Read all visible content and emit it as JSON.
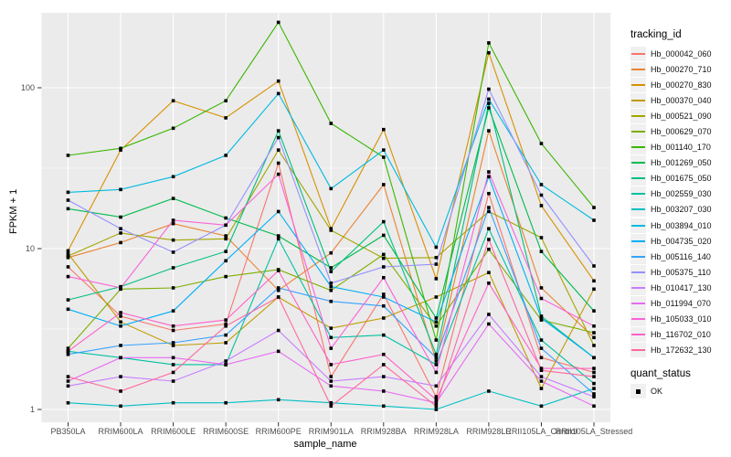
{
  "figure": {
    "y_axis_title": "FPKM + 1",
    "x_axis_title": "sample_name",
    "legend": {
      "title": "tracking_id",
      "quant_title": "quant_status",
      "quant_item": "OK"
    },
    "colors": {
      "background": "#FFFFFF",
      "panel_bg": "#EBEBEB",
      "gridline": "#FFFFFF",
      "axis_text": "#4D4D4D",
      "tick_mark": "#333333",
      "legend_key_bg": "#F0F0F0",
      "point_marker": "#000000"
    }
  },
  "chart_data": {
    "type": "line",
    "title": "",
    "xlabel": "sample_name",
    "ylabel": "FPKM + 1",
    "y_scale": "log10",
    "ylim": [
      0.85,
      290
    ],
    "y_ticks": [
      1,
      10,
      100
    ],
    "y_minor_gridlines": [
      3.1623,
      31.623
    ],
    "grid": true,
    "legend_position": "right",
    "legend_title": "tracking_id",
    "point_marker": "filled black square = quant_status OK",
    "categories": [
      "PB350LA",
      "RRIM600LA",
      "RRIM600LE",
      "RRIM600SE",
      "RRIM600PE",
      "RRIM901LA",
      "RRIM928BA",
      "RRIM928LA",
      "RRIM928LE",
      "RRII105LA_Control",
      "RRII105LA_Stressed"
    ],
    "series": [
      {
        "name": "Hb_000042_060",
        "color": "#F8766D",
        "values": [
          7.7,
          3.8,
          3.1,
          3.4,
          34,
          1.6,
          5.2,
          1.2,
          22,
          2.1,
          1.7
        ]
      },
      {
        "name": "Hb_000270_710",
        "color": "#EA8331",
        "values": [
          8.8,
          10.9,
          14.3,
          12,
          5.5,
          9.4,
          25,
          2.0,
          54,
          5.7,
          2.8
        ]
      },
      {
        "name": "Hb_000270_830",
        "color": "#D89000",
        "values": [
          9.7,
          41,
          83,
          65,
          110,
          13.3,
          55,
          6.5,
          165,
          18.5,
          6.3
        ]
      },
      {
        "name": "Hb_000370_040",
        "color": "#C09B00",
        "values": [
          9.3,
          3.5,
          2.5,
          2.6,
          5.0,
          3.2,
          3.7,
          5.0,
          7.1,
          1.35,
          5.6
        ]
      },
      {
        "name": "Hb_000521_090",
        "color": "#A3A500",
        "values": [
          9.0,
          12.5,
          11.3,
          11.5,
          41,
          13,
          8.7,
          8.8,
          17,
          11.7,
          2.5
        ]
      },
      {
        "name": "Hb_000629_070",
        "color": "#7CAE00",
        "values": [
          2.4,
          5.6,
          5.7,
          6.7,
          7.4,
          5.5,
          9.2,
          3.3,
          9.9,
          3.6,
          3.0
        ]
      },
      {
        "name": "Hb_001140_170",
        "color": "#39B600",
        "values": [
          38,
          42,
          56,
          83,
          255,
          60,
          37,
          2.7,
          190,
          45,
          18
        ]
      },
      {
        "name": "Hb_001269_050",
        "color": "#00BB4E",
        "values": [
          17.7,
          15.7,
          20.5,
          15.5,
          12,
          7.6,
          12.1,
          3.7,
          75,
          9.6,
          4.1
        ]
      },
      {
        "name": "Hb_001675_050",
        "color": "#00BF7D",
        "values": [
          4.8,
          5.8,
          7.6,
          9.6,
          54,
          7.2,
          14.7,
          2.2,
          80,
          3.8,
          2.1
        ]
      },
      {
        "name": "Hb_002559_030",
        "color": "#00C1A3",
        "values": [
          2.3,
          2.1,
          1.9,
          1.9,
          11.5,
          2.8,
          2.9,
          1.9,
          13.3,
          2.7,
          1.45
        ]
      },
      {
        "name": "Hb_003207_030",
        "color": "#00BFC4",
        "values": [
          1.1,
          1.05,
          1.1,
          1.1,
          1.15,
          1.1,
          1.05,
          1.0,
          1.3,
          1.05,
          1.35
        ]
      },
      {
        "name": "Hb_003894_010",
        "color": "#00BAE0",
        "values": [
          22.4,
          23.3,
          28,
          38,
          92,
          23.6,
          41,
          10.2,
          85,
          25,
          15
        ]
      },
      {
        "name": "Hb_004735_020",
        "color": "#00B0F6",
        "values": [
          4.2,
          3.3,
          4.1,
          8.4,
          17,
          5.8,
          5.0,
          3.5,
          28,
          3.7,
          2.1
        ]
      },
      {
        "name": "Hb_005116_140",
        "color": "#35A2FF",
        "values": [
          2.2,
          2.5,
          2.6,
          2.9,
          5.7,
          4.7,
          4.4,
          2.1,
          18,
          2.4,
          1.25
        ]
      },
      {
        "name": "Hb_005375_110",
        "color": "#9590FF",
        "values": [
          20,
          13.3,
          9.5,
          14,
          49,
          6.1,
          7.7,
          8.0,
          98,
          21.5,
          7.8
        ]
      },
      {
        "name": "Hb_010417_130",
        "color": "#C77CFF",
        "values": [
          1.4,
          1.6,
          1.5,
          2.0,
          3.1,
          1.5,
          1.6,
          1.4,
          3.9,
          1.6,
          1.2
        ]
      },
      {
        "name": "Hb_011994_070",
        "color": "#E76BF3",
        "values": [
          1.5,
          2.1,
          2.1,
          1.9,
          2.3,
          1.4,
          1.3,
          1.1,
          3.4,
          1.5,
          1.05
        ]
      },
      {
        "name": "Hb_105033_010",
        "color": "#FA62DB",
        "values": [
          6.7,
          5.7,
          15,
          14,
          29,
          2.4,
          6.6,
          1.7,
          30,
          4.9,
          3.3
        ]
      },
      {
        "name": "Hb_116702_010",
        "color": "#FF61C9",
        "values": [
          2.3,
          4.0,
          3.3,
          3.6,
          7.3,
          1.9,
          2.2,
          1.15,
          6.1,
          1.8,
          1.8
        ]
      },
      {
        "name": "Hb_172632_130",
        "color": "#FF689E",
        "values": [
          1.6,
          1.3,
          1.7,
          3.3,
          5.0,
          1.05,
          1.9,
          1.05,
          11.4,
          1.75,
          1.6
        ]
      }
    ]
  }
}
